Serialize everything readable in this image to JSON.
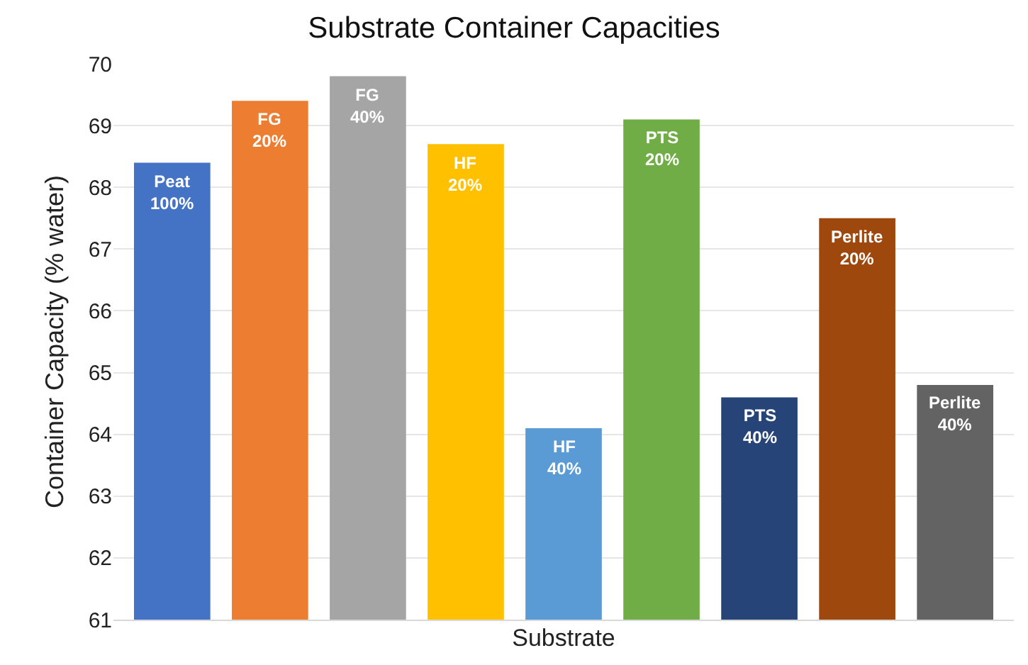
{
  "chart_data": {
    "type": "bar",
    "title": "Substrate Container Capacities",
    "xlabel": "Substrate",
    "ylabel": "Container Capacity (% water)",
    "categories": [
      "Peat 100%",
      "FG 20%",
      "FG 40%",
      "HF 20%",
      "HF 40%",
      "PTS 20%",
      "PTS 40%",
      "Perlite 20%",
      "Perlite 40%"
    ],
    "values": [
      68.4,
      69.4,
      69.8,
      68.7,
      64.1,
      69.1,
      64.6,
      67.5,
      64.8
    ],
    "colors": [
      "#4472c4",
      "#ed7d31",
      "#a5a5a5",
      "#ffc000",
      "#5b9bd5",
      "#70ad47",
      "#264478",
      "#9e480e",
      "#636363"
    ],
    "ylim": [
      61,
      70
    ],
    "yticks": [
      61,
      62,
      63,
      64,
      65,
      66,
      67,
      68,
      69,
      70
    ],
    "grid": "y"
  }
}
